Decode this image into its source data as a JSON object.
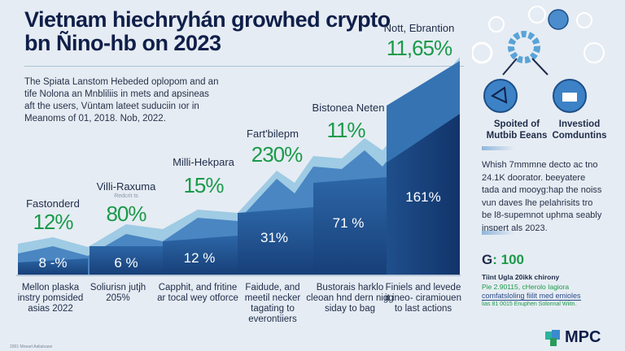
{
  "title": {
    "line1": "Vietnam hiechryhán growhed crypto",
    "line2": "bn Ñino-hb on 2023"
  },
  "intro": "The Spiata Lanstom Hebeded oplopom and an tife Nolona an Mnbliliis in mets and apsineas aft the users, Vüntam lateet suduciin ıor in Meanoms of 01, 2018. Nob, 2022.",
  "columns": [
    {
      "label": "Fastonderd",
      "pct": "12%",
      "inner": "8 -%",
      "caption": "Mellon plaska instry pomsided asias 2022"
    },
    {
      "label": "Villi-Raxuma",
      "sub": "Redcrit ts",
      "pct": "80%",
      "inner": "6 %",
      "caption": "Soliurisn jutjh 205%"
    },
    {
      "label": "Milli-Hekpara",
      "pct": "15%",
      "inner": "12 %",
      "caption": "Capphit, and fritine ar tocal wey otforce"
    },
    {
      "label": "Fart'bilepm",
      "pct": "230%",
      "inner": "31%",
      "caption": "Faidude, and meetil necker tagating to everontiiers"
    },
    {
      "label": "Bistonea Neten",
      "pct": "11%",
      "inner": "71 %",
      "caption": "Bustorais harklo cleoan hnd dern nigg siday to bag"
    },
    {
      "label": "Nott, Ebrantion",
      "pct": "11,65%",
      "inner": "161%",
      "caption": "Finiels and levede it ineo- ciramiouen to last actions"
    }
  ],
  "right": {
    "icon1_label": "Spoited of Mutbib Eeans",
    "icon2_label": "Investiod Comduntins",
    "text": "Whish 7mmmne decto ac tno 24.1K doorator. beeyatere tada and mooyg:hap the noiss vun daves lhe pelahrisits tro be l8-supemnot uphma seably inspert als 2023.",
    "stat": ": 100",
    "stat_title": "Tiint Ugla 20ikk chirony",
    "stat_line1": "Pie 2.90115, cHerolo Iagiora",
    "stat_line2": "comfatsloling fiilit med emioles",
    "stat_line3": "lias 81 0015 Enuphen Solonnal Wiitn."
  },
  "logo": "MPC",
  "footer": "2001 Moeart Aaliatcase",
  "colors": {
    "navy": "#0f1f4a",
    "green": "#1a9a4a",
    "dark_blue": "#1d4f8a",
    "mid_blue": "#3a78b8",
    "light_blue": "#8fc3e0"
  }
}
